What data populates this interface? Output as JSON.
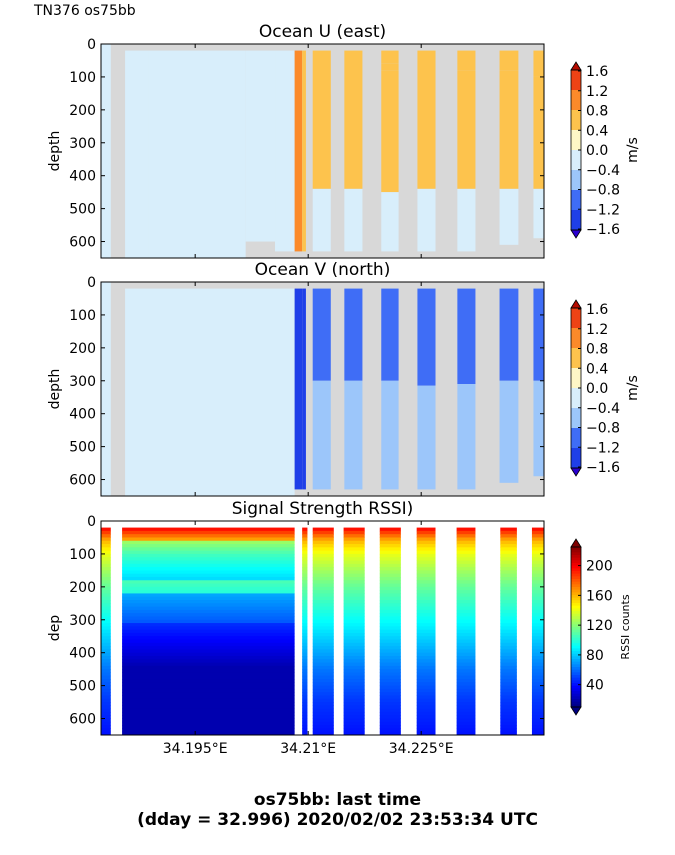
{
  "header_label": "TN376 os75bb",
  "footer": {
    "line1": "os75bb: last time",
    "line2": "(dday = 32.996) 2020/02/02 23:53:34 UTC"
  },
  "colors": {
    "missing": "#d8d8d8",
    "velocity_levels": [
      "#2a00d0",
      "#1f3fe8",
      "#3f6df6",
      "#9cc6fa",
      "#d8eefb",
      "#fdf6c6",
      "#fdc34d",
      "#fb8a2a",
      "#ee4315",
      "#b50b00"
    ],
    "rssi_cmap": [
      "#00007f",
      "#0000ff",
      "#007fff",
      "#00ffff",
      "#7fff7f",
      "#ffff00",
      "#ff7f00",
      "#ff0000",
      "#7f0000"
    ]
  },
  "chart_data": [
    {
      "type": "heatmap",
      "title": "Ocean U (east)",
      "ylabel": "depth",
      "yticks": [
        0,
        100,
        200,
        300,
        400,
        500,
        600
      ],
      "ylim": [
        650,
        0
      ],
      "xlim": [
        34.1825,
        34.2413
      ],
      "xticks": [
        34.195,
        34.21,
        34.225
      ],
      "xtick_labels": [
        "",
        "",
        ""
      ],
      "colorbar": {
        "label": "m/s",
        "ticks": [
          "1.6",
          "1.2",
          "0.8",
          "0.4",
          "0.0",
          "−0.4",
          "−0.8",
          "−1.2",
          "−1.6"
        ],
        "vmin": -1.6,
        "vmax": 1.6
      },
      "columns": [
        {
          "x0": 34.1825,
          "x1": 34.1838,
          "segments": [
            {
              "from": 0,
              "to": 650,
              "value": -0.2
            }
          ]
        },
        {
          "x0": 34.1857,
          "x1": 34.1888,
          "segments": [
            {
              "from": 20,
              "to": 650,
              "value": 0.1
            }
          ]
        },
        {
          "x0": 34.1888,
          "x1": 34.2017,
          "segments": [
            {
              "from": 20,
              "to": 650,
              "value": 0.1
            }
          ]
        },
        {
          "x0": 34.2017,
          "x1": 34.2056,
          "segments": [
            {
              "from": 20,
              "to": 600,
              "value": 0.1
            }
          ]
        },
        {
          "x0": 34.2056,
          "x1": 34.2082,
          "segments": [
            {
              "from": 20,
              "to": 630,
              "value": 0.1
            }
          ]
        },
        {
          "x0": 34.2082,
          "x1": 34.2092,
          "segments": [
            {
              "from": 20,
              "to": 630,
              "value": 1.3
            }
          ]
        },
        {
          "x0": 34.2092,
          "x1": 34.2097,
          "segments": [
            {
              "from": 20,
              "to": 630,
              "value": 0.9
            }
          ]
        },
        {
          "x0": 34.2106,
          "x1": 34.213,
          "segments": [
            {
              "from": 20,
              "to": 440,
              "value": 0.6
            },
            {
              "from": 440,
              "to": 630,
              "value": 0.1
            }
          ]
        },
        {
          "x0": 34.2148,
          "x1": 34.2172,
          "segments": [
            {
              "from": 20,
              "to": 440,
              "value": 0.6
            },
            {
              "from": 440,
              "to": 630,
              "value": 0.1
            }
          ]
        },
        {
          "x0": 34.2197,
          "x1": 34.222,
          "segments": [
            {
              "from": 20,
              "to": 60,
              "value": 0.6
            },
            {
              "from": 60,
              "to": 80,
              "value": 0.9
            },
            {
              "from": 80,
              "to": 450,
              "value": 0.6
            },
            {
              "from": 450,
              "to": 630,
              "value": 0.1
            }
          ]
        },
        {
          "x0": 34.2245,
          "x1": 34.2269,
          "segments": [
            {
              "from": 20,
              "to": 440,
              "value": 0.6
            },
            {
              "from": 440,
              "to": 630,
              "value": 0.1
            }
          ]
        },
        {
          "x0": 34.2298,
          "x1": 34.2322,
          "segments": [
            {
              "from": 20,
              "to": 80,
              "value": 0.9
            },
            {
              "from": 80,
              "to": 440,
              "value": 0.6
            },
            {
              "from": 440,
              "to": 630,
              "value": 0.1
            }
          ]
        },
        {
          "x0": 34.2354,
          "x1": 34.2379,
          "segments": [
            {
              "from": 20,
              "to": 80,
              "value": 0.9
            },
            {
              "from": 80,
              "to": 440,
              "value": 0.6
            },
            {
              "from": 440,
              "to": 610,
              "value": 0.1
            }
          ]
        },
        {
          "x0": 34.2399,
          "x1": 34.2413,
          "segments": [
            {
              "from": 20,
              "to": 100,
              "value": 0.9
            },
            {
              "from": 100,
              "to": 440,
              "value": 0.6
            },
            {
              "from": 440,
              "to": 590,
              "value": 0.1
            }
          ]
        }
      ]
    },
    {
      "type": "heatmap",
      "title": "Ocean V (north)",
      "ylabel": "depth",
      "yticks": [
        0,
        100,
        200,
        300,
        400,
        500,
        600
      ],
      "ylim": [
        650,
        0
      ],
      "xlim": [
        34.1825,
        34.2413
      ],
      "xticks": [
        34.195,
        34.21,
        34.225
      ],
      "xtick_labels": [
        "",
        "",
        ""
      ],
      "colorbar": {
        "label": "m/s",
        "ticks": [
          "1.6",
          "1.2",
          "0.8",
          "0.4",
          "0.0",
          "−0.4",
          "−0.8",
          "−1.2",
          "−1.6"
        ],
        "vmin": -1.6,
        "vmax": 1.6
      },
      "columns": [
        {
          "x0": 34.1825,
          "x1": 34.1838,
          "segments": [
            {
              "from": 0,
              "to": 650,
              "value": 0.1
            }
          ]
        },
        {
          "x0": 34.1857,
          "x1": 34.2082,
          "segments": [
            {
              "from": 20,
              "to": 650,
              "value": -0.2
            }
          ]
        },
        {
          "x0": 34.2082,
          "x1": 34.2092,
          "segments": [
            {
              "from": 20,
              "to": 630,
              "value": -1.4
            }
          ]
        },
        {
          "x0": 34.2092,
          "x1": 34.2097,
          "segments": [
            {
              "from": 20,
              "to": 630,
              "value": -1.1
            }
          ]
        },
        {
          "x0": 34.2106,
          "x1": 34.213,
          "segments": [
            {
              "from": 20,
              "to": 300,
              "value": -0.9
            },
            {
              "from": 300,
              "to": 630,
              "value": -0.6
            }
          ]
        },
        {
          "x0": 34.2148,
          "x1": 34.2172,
          "segments": [
            {
              "from": 20,
              "to": 300,
              "value": -0.9
            },
            {
              "from": 300,
              "to": 630,
              "value": -0.6
            }
          ]
        },
        {
          "x0": 34.2197,
          "x1": 34.222,
          "segments": [
            {
              "from": 20,
              "to": 300,
              "value": -0.9
            },
            {
              "from": 300,
              "to": 630,
              "value": -0.6
            }
          ]
        },
        {
          "x0": 34.2245,
          "x1": 34.2269,
          "segments": [
            {
              "from": 20,
              "to": 315,
              "value": -0.9
            },
            {
              "from": 315,
              "to": 630,
              "value": -0.6
            }
          ]
        },
        {
          "x0": 34.2298,
          "x1": 34.2322,
          "segments": [
            {
              "from": 20,
              "to": 310,
              "value": -0.9
            },
            {
              "from": 310,
              "to": 630,
              "value": -0.6
            }
          ]
        },
        {
          "x0": 34.2354,
          "x1": 34.2379,
          "segments": [
            {
              "from": 20,
              "to": 300,
              "value": -0.9
            },
            {
              "from": 300,
              "to": 610,
              "value": -0.6
            }
          ]
        },
        {
          "x0": 34.2399,
          "x1": 34.2413,
          "segments": [
            {
              "from": 20,
              "to": 300,
              "value": -0.9
            },
            {
              "from": 300,
              "to": 590,
              "value": -0.6
            }
          ]
        }
      ]
    },
    {
      "type": "heatmap",
      "title": "Signal Strength RSSI)",
      "ylabel": "dep",
      "yticks": [
        0,
        100,
        200,
        300,
        400,
        500,
        600
      ],
      "ylim": [
        650,
        0
      ],
      "xlim": [
        34.1825,
        34.2413
      ],
      "xticks": [
        34.195,
        34.21,
        34.225
      ],
      "xtick_labels": [
        "34.195°E",
        "34.21°E",
        "34.225°E"
      ],
      "colorbar": {
        "label": "RSSI counts",
        "ticks": [
          "200",
          "160",
          "120",
          "80",
          "40"
        ],
        "vmin": 10,
        "vmax": 225
      },
      "profile_depth": [
        20,
        40,
        60,
        100,
        150,
        200,
        250,
        300,
        350,
        400,
        450,
        500,
        550,
        600,
        650
      ],
      "profile_rssi": [
        200,
        180,
        160,
        140,
        125,
        112,
        102,
        92,
        82,
        72,
        62,
        55,
        48,
        44,
        40
      ],
      "columns": [
        {
          "x0": 34.1825,
          "x1": 34.1838,
          "profile": true
        },
        {
          "x0": 34.1853,
          "x1": 34.2082,
          "profile": false
        },
        {
          "x0": 34.2092,
          "x1": 34.2099,
          "profile": true
        },
        {
          "x0": 34.2106,
          "x1": 34.2134,
          "profile": true
        },
        {
          "x0": 34.2147,
          "x1": 34.2175,
          "profile": true
        },
        {
          "x0": 34.2195,
          "x1": 34.2223,
          "profile": true
        },
        {
          "x0": 34.2244,
          "x1": 34.2269,
          "profile": true
        },
        {
          "x0": 34.2297,
          "x1": 34.2322,
          "profile": true
        },
        {
          "x0": 34.2355,
          "x1": 34.2377,
          "profile": true
        },
        {
          "x0": 34.2397,
          "x1": 34.2413,
          "profile": true
        }
      ]
    }
  ]
}
